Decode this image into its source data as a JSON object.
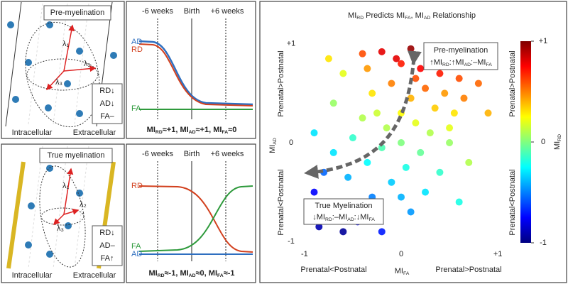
{
  "pre_myelination": {
    "label": "Pre-myelination",
    "eigenvalues": [
      "λ₁",
      "λ₂",
      "λ₃"
    ],
    "indicators": [
      "RD↓",
      "AD↓",
      "FA–"
    ],
    "compartments": [
      "Intracellular",
      "Extracellular"
    ],
    "timeline": {
      "times": [
        "-6 weeks",
        "Birth",
        "+6 weeks"
      ],
      "curves": [
        "AD",
        "RD",
        "FA"
      ],
      "caption": [
        "MI",
        "RD",
        "≈+1, MI",
        "AD",
        "≈+1, MI",
        "FA",
        "≈0"
      ]
    }
  },
  "true_myelination": {
    "label": "True myelination",
    "eigenvalues": [
      "λ₁",
      "λ₂",
      "λ₃"
    ],
    "indicators": [
      "RD↓",
      "AD–",
      "FA↑"
    ],
    "compartments": [
      "Intracellular",
      "Extracellular"
    ],
    "timeline": {
      "times": [
        "-6 weeks",
        "Birth",
        "+6 weeks"
      ],
      "curves": [
        "RD",
        "FA",
        "AD"
      ],
      "caption": [
        "MI",
        "RD",
        "≈-1, MI",
        "AD",
        "≈0, MI",
        "FA",
        "≈-1"
      ]
    }
  },
  "chart_data": {
    "type": "scatter",
    "title": [
      "MI",
      "RD",
      " Predicts MI",
      "FA",
      ", MI",
      "AD",
      " Relationship"
    ],
    "x_label": [
      "MI",
      "FA"
    ],
    "y_label": [
      "MI",
      "AD"
    ],
    "x_direction_labels": [
      "Prenatal<Postnatal",
      "Prenatal>Postnatal"
    ],
    "y_direction_labels": [
      "Prenatal<Postnatal",
      "Prenatal>Postnatal"
    ],
    "xlim": [
      -1.08,
      1.08
    ],
    "ylim": [
      -1.07,
      1.07
    ],
    "xticks": [
      -1,
      0,
      {
        "value": 1,
        "label": "+1"
      }
    ],
    "yticks": [
      -1,
      0,
      {
        "value": 1,
        "label": "+1"
      }
    ],
    "colormap": "jet",
    "colorbar": {
      "label": [
        "MI",
        "RD"
      ],
      "lim": [
        -1,
        1
      ],
      "ticks": [
        -1,
        0,
        {
          "value": 1,
          "label": "+1"
        }
      ],
      "direction_labels": [
        "Prenatal<Postnatal",
        "Prenatal>Postnatal"
      ]
    },
    "x": [
      0.1,
      0.3,
      0.5,
      -0.2,
      0.2,
      0.4,
      0.6,
      0.0,
      -0.4,
      0.7,
      0.25,
      0.45,
      0.1,
      -0.1,
      0.8,
      0.35,
      0.0,
      -0.3,
      0.55,
      0.15,
      -0.15,
      0.3,
      -0.4,
      -0.6,
      0.0,
      -0.2,
      0.2,
      -0.5,
      0.5,
      -0.35,
      0.05,
      -0.7,
      0.4,
      -0.1,
      -0.55,
      0.25,
      -0.8,
      -0.3,
      0.1,
      -0.65,
      -0.9,
      -0.45,
      -0.85,
      -0.2,
      -0.95,
      0.6,
      -0.7,
      0.9,
      -0.9,
      0.7,
      -0.6,
      0.35,
      -0.05,
      0.15,
      -0.25,
      0.5,
      -0.75,
      0.0,
      -0.35,
      0.65
    ],
    "y": [
      0.95,
      0.9,
      0.85,
      0.92,
      0.75,
      0.7,
      0.65,
      0.8,
      0.9,
      0.9,
      0.55,
      0.5,
      0.45,
      0.6,
      0.6,
      0.35,
      0.3,
      0.5,
      0.3,
      0.2,
      0.15,
      0.1,
      0.25,
      0.7,
      0.0,
      -0.05,
      -0.1,
      0.05,
      0.0,
      -0.2,
      -0.25,
      -0.1,
      -0.3,
      -0.4,
      -0.35,
      -0.5,
      -0.3,
      -0.55,
      -0.7,
      -0.6,
      -0.5,
      -0.8,
      -0.85,
      -0.9,
      -0.7,
      -0.6,
      0.4,
      0.3,
      0.1,
      -0.2,
      -0.9,
      0.95,
      0.85,
      0.65,
      0.3,
      0.15,
      0.85,
      -0.55,
      0.75,
      0.45
    ],
    "color_values": [
      0.95,
      0.9,
      0.85,
      0.8,
      0.75,
      0.7,
      0.6,
      0.7,
      0.6,
      0.85,
      0.55,
      0.45,
      0.4,
      0.5,
      0.55,
      0.35,
      0.25,
      0.3,
      0.3,
      0.2,
      0.1,
      0.1,
      0.1,
      0.2,
      0.0,
      -0.1,
      -0.05,
      -0.15,
      0.05,
      -0.25,
      -0.2,
      -0.3,
      -0.15,
      -0.35,
      -0.4,
      -0.3,
      -0.55,
      -0.5,
      -0.45,
      -0.7,
      -0.75,
      -0.75,
      -0.9,
      -0.7,
      -0.9,
      -0.2,
      0.05,
      0.4,
      -0.3,
      0.1,
      -0.95,
      0.95,
      0.8,
      0.6,
      0.15,
      0.2,
      0.3,
      -0.4,
      0.45,
      0.5
    ],
    "annotations": [
      {
        "title": "Pre-myelination",
        "text": [
          "↑MI",
          "RD",
          ":↑MI",
          "AD",
          ":–MI",
          "FA"
        ]
      },
      {
        "title": "True Myelination",
        "text": [
          "↓MI",
          "RD",
          ":–MI",
          "AD",
          ":↓MI",
          "FA"
        ]
      }
    ]
  }
}
